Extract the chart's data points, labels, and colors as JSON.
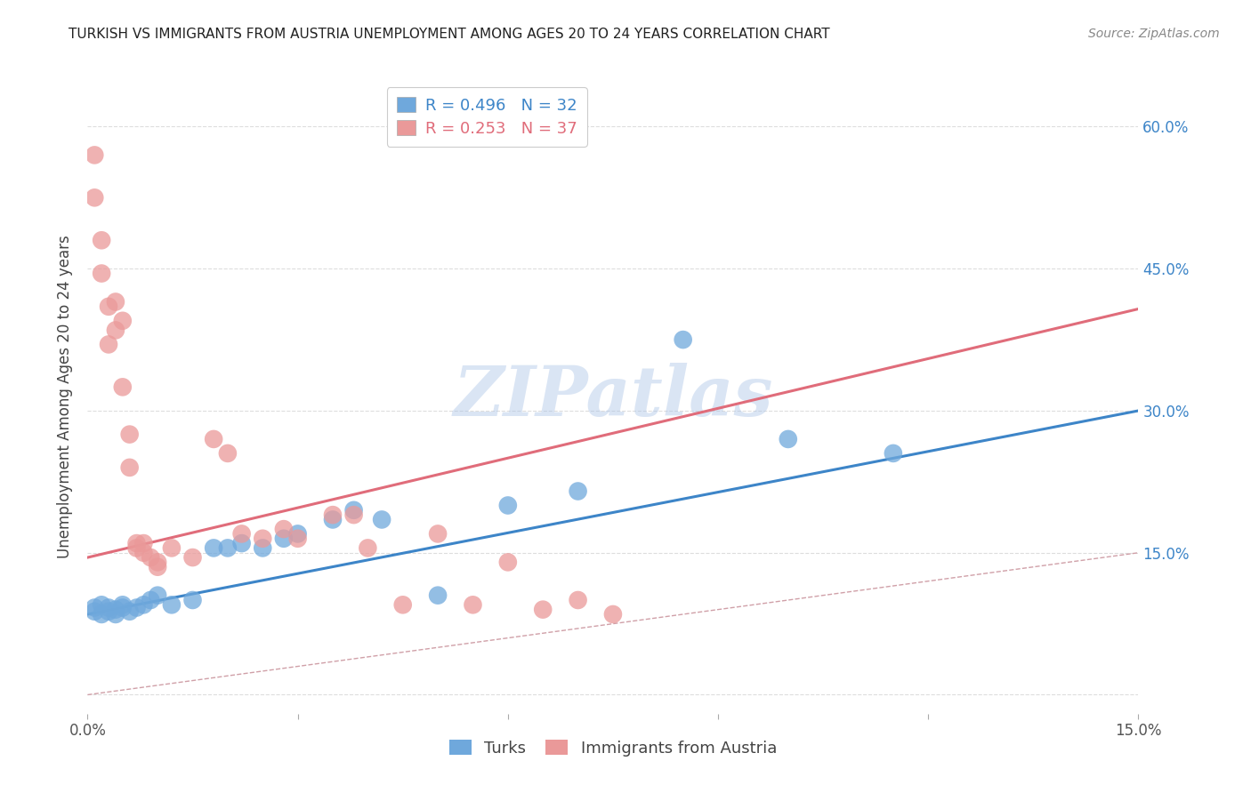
{
  "title": "TURKISH VS IMMIGRANTS FROM AUSTRIA UNEMPLOYMENT AMONG AGES 20 TO 24 YEARS CORRELATION CHART",
  "source": "Source: ZipAtlas.com",
  "ylabel": "Unemployment Among Ages 20 to 24 years",
  "xlim": [
    0.0,
    0.15
  ],
  "ylim": [
    -0.02,
    0.65
  ],
  "background_color": "#ffffff",
  "watermark_text": "ZIPatlas",
  "turks_color": "#6fa8dc",
  "austria_color": "#ea9999",
  "turks_R": 0.496,
  "turks_N": 32,
  "austria_R": 0.253,
  "austria_N": 37,
  "turks_line_color": "#3d85c8",
  "austria_line_color": "#e06c7a",
  "diagonal_color": "#d0a0a8",
  "turks_x": [
    0.001,
    0.001,
    0.002,
    0.002,
    0.003,
    0.003,
    0.004,
    0.004,
    0.005,
    0.005,
    0.006,
    0.007,
    0.008,
    0.009,
    0.01,
    0.012,
    0.015,
    0.018,
    0.02,
    0.022,
    0.025,
    0.028,
    0.03,
    0.035,
    0.038,
    0.042,
    0.05,
    0.06,
    0.07,
    0.085,
    0.1,
    0.115
  ],
  "turks_y": [
    0.092,
    0.088,
    0.095,
    0.085,
    0.092,
    0.088,
    0.09,
    0.085,
    0.092,
    0.095,
    0.088,
    0.092,
    0.095,
    0.1,
    0.105,
    0.095,
    0.1,
    0.155,
    0.155,
    0.16,
    0.155,
    0.165,
    0.17,
    0.185,
    0.195,
    0.185,
    0.105,
    0.2,
    0.215,
    0.375,
    0.27,
    0.255
  ],
  "austria_x": [
    0.001,
    0.001,
    0.002,
    0.002,
    0.003,
    0.003,
    0.004,
    0.004,
    0.005,
    0.005,
    0.006,
    0.006,
    0.007,
    0.007,
    0.008,
    0.008,
    0.009,
    0.01,
    0.01,
    0.012,
    0.015,
    0.018,
    0.02,
    0.022,
    0.025,
    0.028,
    0.03,
    0.035,
    0.038,
    0.04,
    0.045,
    0.05,
    0.055,
    0.06,
    0.065,
    0.07,
    0.075
  ],
  "austria_y": [
    0.57,
    0.525,
    0.48,
    0.445,
    0.41,
    0.37,
    0.415,
    0.385,
    0.395,
    0.325,
    0.275,
    0.24,
    0.16,
    0.155,
    0.16,
    0.15,
    0.145,
    0.14,
    0.135,
    0.155,
    0.145,
    0.27,
    0.255,
    0.17,
    0.165,
    0.175,
    0.165,
    0.19,
    0.19,
    0.155,
    0.095,
    0.17,
    0.095,
    0.14,
    0.09,
    0.1,
    0.085
  ]
}
